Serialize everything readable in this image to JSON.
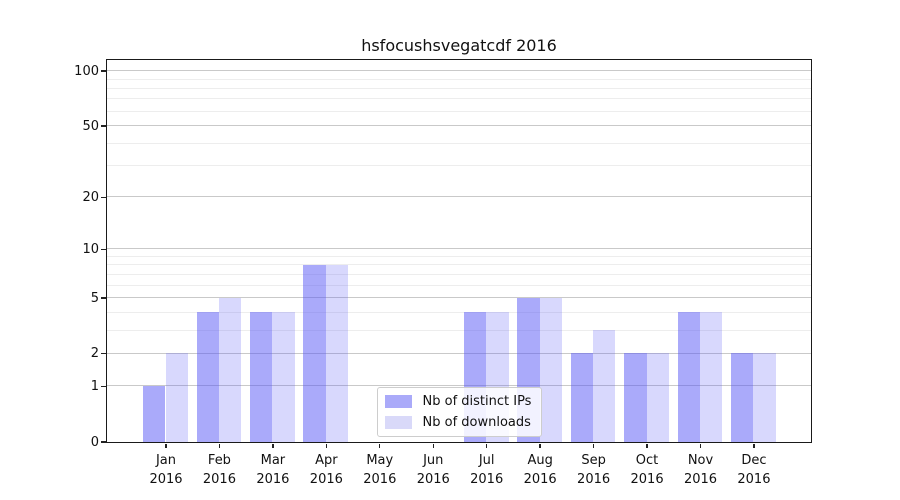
{
  "title": "hsfocushsvegatcdf 2016",
  "chart_data": {
    "type": "bar",
    "title": "hsfocushsvegatcdf 2016",
    "categories": [
      "Jan",
      "Feb",
      "Mar",
      "Apr",
      "May",
      "Jun",
      "Jul",
      "Aug",
      "Sep",
      "Oct",
      "Nov",
      "Dec"
    ],
    "category_year": "2016",
    "series": [
      {
        "name": "Nb of distinct IPs",
        "fill": "rgba(85,85,245,0.5)",
        "legend_color": "#aaaaf9",
        "values": [
          1,
          4,
          4,
          8,
          0,
          0,
          4,
          5,
          2,
          2,
          4,
          2
        ]
      },
      {
        "name": "Nb of downloads",
        "fill": "rgba(85,85,245,0.23)",
        "legend_color": "#d9d9f9",
        "values": [
          2,
          5,
          4,
          8,
          0,
          0,
          4,
          5,
          3,
          2,
          4,
          2
        ]
      }
    ],
    "yscale": "log1p",
    "ylim": [
      0,
      115
    ],
    "yticks": [
      0,
      1,
      2,
      5,
      10,
      20,
      50,
      100
    ],
    "yticks_minor": [
      3,
      4,
      6,
      7,
      8,
      9,
      30,
      40,
      60,
      70,
      80,
      90
    ],
    "grid": {
      "major_color": "#c9c9c9",
      "minor_color": "#ededed",
      "grid_on": true
    },
    "legend_position": "lower center",
    "xlabel": "",
    "ylabel": ""
  }
}
